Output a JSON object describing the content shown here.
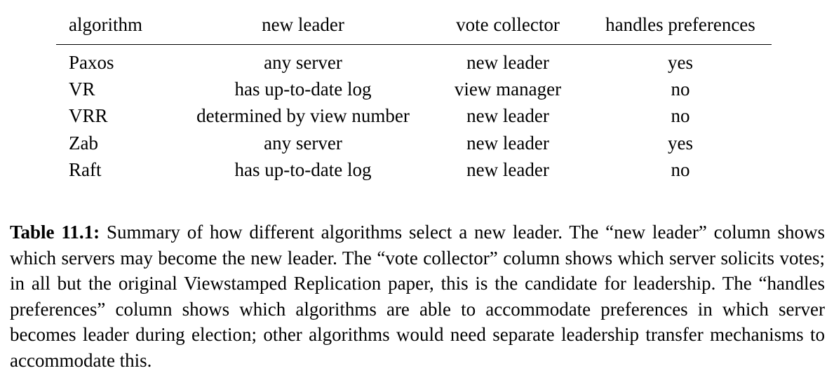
{
  "table": {
    "headers": [
      "algorithm",
      "new leader",
      "vote collector",
      "handles preferences"
    ],
    "rows": [
      [
        "Paxos",
        "any server",
        "new leader",
        "yes"
      ],
      [
        "VR",
        "has up-to-date log",
        "view manager",
        "no"
      ],
      [
        "VRR",
        "determined by view number",
        "new leader",
        "no"
      ],
      [
        "Zab",
        "any server",
        "new leader",
        "yes"
      ],
      [
        "Raft",
        "has up-to-date log",
        "new leader",
        "no"
      ]
    ]
  },
  "caption": {
    "label": "Table 11.1:",
    "text": "Summary of how different algorithms select a new leader. The “new leader” col­umn shows which servers may become the new leader. The “vote collector” column shows which server solicits votes; in all but the original Viewstamped Replication paper, this is the candidate for leadership. The “handles preferences” column shows which algorithms are able to accommodate preferences in which server becomes leader during election; other algorithms would need separate leadership transfer mechanisms to accommodate this."
  }
}
